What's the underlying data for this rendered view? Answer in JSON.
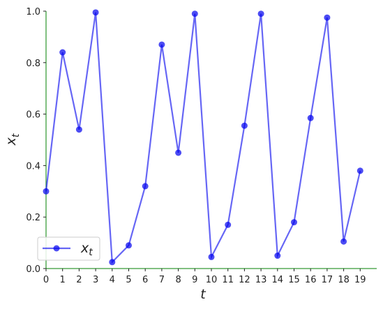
{
  "chart_data": {
    "type": "line",
    "xlabel": "t",
    "ylabel": {
      "text": "x",
      "subscript": "t"
    },
    "x": [
      0,
      1,
      2,
      3,
      4,
      5,
      6,
      7,
      8,
      9,
      10,
      11,
      12,
      13,
      14,
      15,
      16,
      17,
      18,
      19
    ],
    "series": [
      {
        "name": "x",
        "name_subscript": "t",
        "color": "#0000ee",
        "values": [
          0.3,
          0.84,
          0.54,
          0.995,
          0.025,
          0.09,
          0.32,
          0.87,
          0.45,
          0.99,
          0.045,
          0.17,
          0.555,
          0.99,
          0.05,
          0.18,
          0.585,
          0.975,
          0.105,
          0.38
        ]
      }
    ],
    "xlim": [
      0,
      20
    ],
    "ylim": [
      0,
      1
    ],
    "xticks": [
      0,
      1,
      2,
      3,
      4,
      5,
      6,
      7,
      8,
      9,
      10,
      11,
      12,
      13,
      14,
      15,
      16,
      17,
      18,
      19
    ],
    "yticks": [
      {
        "value": 0,
        "label": "0.0"
      },
      {
        "value": 0.2,
        "label": "0.2"
      },
      {
        "value": 0.4,
        "label": "0.4"
      },
      {
        "value": 0.6,
        "label": "0.6"
      },
      {
        "value": 0.8,
        "label": "0.8"
      },
      {
        "value": 1,
        "label": "1.0"
      }
    ],
    "spine_color": "green",
    "legend": "lower left"
  }
}
